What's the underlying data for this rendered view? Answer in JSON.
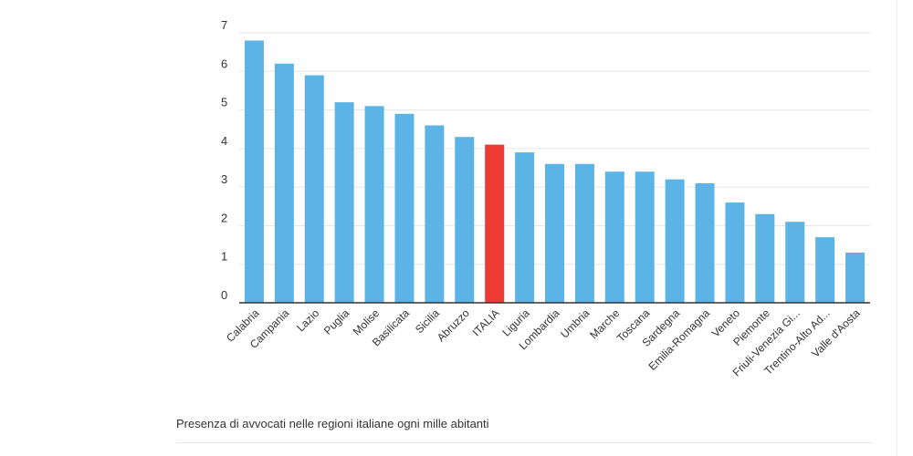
{
  "caption": "Presenza di avvocati nelle regioni italiane ogni mille abitanti",
  "colors": {
    "bar": "#5bb4e5",
    "highlight": "#ee3a35",
    "grid": "#e6e6e6",
    "baseline": "#333333"
  },
  "chart_data": {
    "type": "bar",
    "title": "",
    "xlabel": "",
    "ylabel": "",
    "ylim": [
      0,
      7
    ],
    "yticks": [
      0,
      1,
      2,
      3,
      4,
      5,
      6,
      7
    ],
    "grid": true,
    "highlight_category": "ITALIA",
    "categories": [
      "Calabria",
      "Campania",
      "Lazio",
      "Puglia",
      "Molise",
      "Basilicata",
      "Sicilia",
      "Abruzzo",
      "ITALIA",
      "Liguria",
      "Lombardia",
      "Umbria",
      "Marche",
      "Toscana",
      "Sardegna",
      "Emilia-Romagna",
      "Veneto",
      "Piemonte",
      "Friuli-Venezia Gi...",
      "Trentino-Alto Ad...",
      "Valle d'Aosta"
    ],
    "values": [
      6.8,
      6.2,
      5.9,
      5.2,
      5.1,
      4.9,
      4.6,
      4.3,
      4.1,
      3.9,
      3.6,
      3.6,
      3.4,
      3.4,
      3.2,
      3.1,
      2.6,
      2.3,
      2.1,
      1.7,
      1.3
    ]
  }
}
